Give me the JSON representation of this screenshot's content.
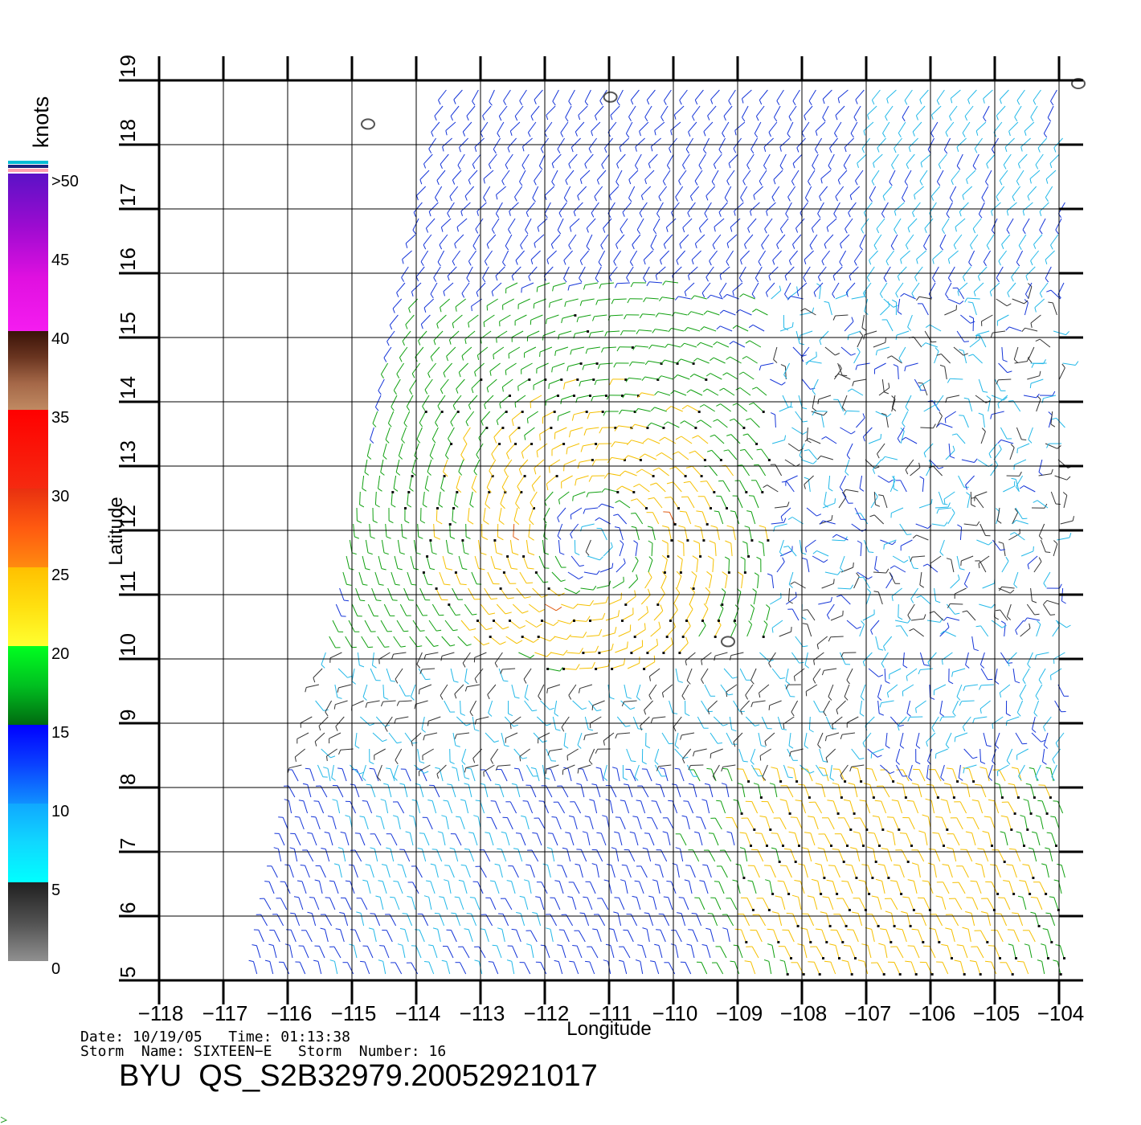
{
  "chart_data": {
    "type": "wind-barb-map",
    "xlabel": "Longitude",
    "ylabel": "Latitude",
    "xlim": [
      -118,
      -104
    ],
    "ylim": [
      5,
      19
    ],
    "x_ticks": [
      -118,
      -117,
      -116,
      -115,
      -114,
      -113,
      -112,
      -111,
      -110,
      -109,
      -108,
      -107,
      -106,
      -105,
      -104
    ],
    "x_tick_labels": [
      "−118",
      "−117",
      "−116",
      "−115",
      "−114",
      "−113",
      "−112",
      "−111",
      "−110",
      "−109",
      "−108",
      "−107",
      "−106",
      "−105",
      "−104"
    ],
    "y_ticks": [
      5,
      6,
      7,
      8,
      9,
      10,
      11,
      12,
      13,
      14,
      15,
      16,
      17,
      18,
      19
    ],
    "y_tick_labels": [
      "5",
      "6",
      "7",
      "8",
      "9",
      "10",
      "11",
      "12",
      "13",
      "14",
      "15",
      "16",
      "17",
      "18",
      "19"
    ],
    "grid": true,
    "storm_center": {
      "lon": -111.2,
      "lat": 11.8
    },
    "swath": {
      "top": {
        "lat": 19,
        "lon_west": -113.5,
        "lon_east": -104
      },
      "bottom": {
        "lat": 5,
        "lon_west": -116.5,
        "lon_east": -104
      }
    },
    "colorbar": {
      "title": "knots",
      "labels": [
        ">50",
        "45",
        "40",
        "35",
        "30",
        "25",
        "20",
        "15",
        "10",
        "5",
        "0"
      ],
      "segments": [
        {
          "from": 50,
          "to": 40,
          "colors": [
            "#5a12c6",
            "#9c0bd0",
            "#e010e0",
            "#f51cf0"
          ]
        },
        {
          "from": 40,
          "to": 35,
          "colors": [
            "#3a1208",
            "#6a3520",
            "#a56848",
            "#c08a62"
          ]
        },
        {
          "from": 35,
          "to": 30,
          "colors": [
            "#ff0000",
            "#f52a10"
          ]
        },
        {
          "from": 30,
          "to": 25,
          "colors": [
            "#e83010",
            "#ff5a10",
            "#ff8a10"
          ]
        },
        {
          "from": 25,
          "to": 20,
          "colors": [
            "#ffc000",
            "#ffe010",
            "#ffff30"
          ]
        },
        {
          "from": 20,
          "to": 15,
          "colors": [
            "#00ff20",
            "#00c020",
            "#006a10"
          ]
        },
        {
          "from": 15,
          "to": 10,
          "colors": [
            "#0000ff",
            "#0a40ff",
            "#1090ff"
          ]
        },
        {
          "from": 10,
          "to": 5,
          "colors": [
            "#10a8ff",
            "#10d8ff",
            "#00ffff"
          ]
        },
        {
          "from": 5,
          "to": 0,
          "colors": [
            "#202020",
            "#505050",
            "#909090"
          ]
        }
      ],
      "flag_colors": [
        "#00bcd4",
        "#1a237e",
        "#ff9fb0"
      ]
    },
    "speed_colors": {
      "calm": "#333333",
      "light": "#22b8e8",
      "moderate": "#1535d8",
      "fresh": "#10a010",
      "strong": "#f5c000",
      "gale": "#e05a10",
      "flagged": "#101010"
    },
    "islands": [
      {
        "lon": -110.98,
        "lat": 18.74
      },
      {
        "lon": -114.75,
        "lat": 18.32
      },
      {
        "lon": -109.15,
        "lat": 10.27
      },
      {
        "lon": -103.7,
        "lat": 18.95
      }
    ]
  },
  "footer": {
    "line1": "Date: 10/19/05   Time: 01:13:38",
    "line2": "Storm  Name: SIXTEEN−E   Storm  Number: 16",
    "ident": "BYU  QS_S2B32979.20052921017"
  }
}
